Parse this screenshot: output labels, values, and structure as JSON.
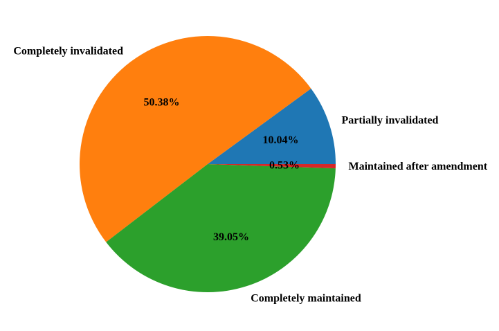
{
  "figure": {
    "background_color": "#ffffff",
    "text_color": "#000000"
  },
  "chart_data": {
    "type": "pie",
    "title": "",
    "legend": "none",
    "start_angle_deg": 0,
    "direction": "counterclockwise",
    "slices": [
      {
        "label": "Partially invalidated",
        "value": 10.04,
        "pct_label": "10.04%",
        "color": "#1f77b4"
      },
      {
        "label": "Completely invalidated",
        "value": 50.38,
        "pct_label": "50.38%",
        "color": "#ff7f0e"
      },
      {
        "label": "Completely maintained",
        "value": 39.05,
        "pct_label": "39.05%",
        "color": "#2ca02c"
      },
      {
        "label": "Maintained after amendment",
        "value": 0.53,
        "pct_label": "0.53%",
        "color": "#d62728"
      }
    ]
  }
}
